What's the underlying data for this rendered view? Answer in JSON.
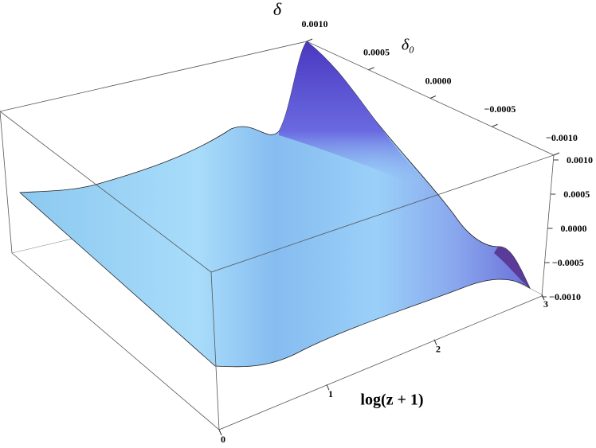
{
  "chart_data": {
    "type": "surface3d",
    "xlabel": "log(z + 1)",
    "ylabel": "δ₀",
    "zlabel": "δ",
    "xlim": [
      0,
      3
    ],
    "xticks": [
      0,
      1,
      2,
      3
    ],
    "ylim": [
      -0.001,
      0.001
    ],
    "yticks": [
      {
        "value": 0.001,
        "label": "0.0010"
      },
      {
        "value": 0.0005,
        "label": "0.0005"
      },
      {
        "value": 0,
        "label": "0.0000"
      },
      {
        "value": -0.0005,
        "label": "−0.0005"
      },
      {
        "value": -0.001,
        "label": "−0.0010"
      }
    ],
    "zlim": [
      -0.001,
      0.001
    ],
    "zticks": [
      {
        "value": 0.001,
        "label": "0.0010"
      },
      {
        "value": 0.0005,
        "label": "0.0005"
      },
      {
        "value": 0,
        "label": "0.0000"
      },
      {
        "value": -0.0005,
        "label": "−0.0005"
      },
      {
        "value": -0.001,
        "label": "−0.0010"
      }
    ]
  }
}
